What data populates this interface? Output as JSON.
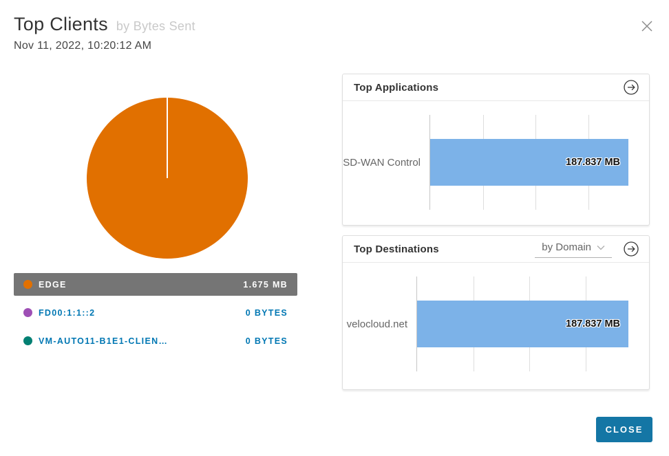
{
  "header": {
    "title": "Top Clients",
    "subtitle": "by Bytes Sent",
    "timestamp": "Nov 11, 2022, 10:20:12 AM"
  },
  "applications_panel": {
    "title": "Top Applications"
  },
  "destinations_panel": {
    "title": "Top Destinations",
    "filter_selected": "by Domain"
  },
  "footer": {
    "close_label": "CLOSE"
  },
  "colors": {
    "pie_orange": "#e17000",
    "series_purple": "#9e4fb5",
    "series_teal": "#038073",
    "bar_blue": "#7cb2e8",
    "legend_selected_bg": "#757575",
    "link_blue": "#0077b3",
    "close_button_bg": "#1476a5"
  },
  "chart_data": [
    {
      "type": "pie",
      "title": "Top Clients by Bytes Sent",
      "legend_position": "bottom",
      "slices": [
        {
          "label": "EDGE",
          "value_mb": 1.675,
          "display_value": "1.675 MB",
          "color": "#e17000",
          "percent": 100,
          "selected": true
        },
        {
          "label": "FD00:1:1::2",
          "value_mb": 0,
          "display_value": "0 BYTES",
          "color": "#9e4fb5",
          "percent": 0,
          "selected": false
        },
        {
          "label": "VM-AUTO11-B1E1-CLIEN…",
          "value_mb": 0,
          "display_value": "0 BYTES",
          "color": "#038073",
          "percent": 0,
          "selected": false
        }
      ]
    },
    {
      "type": "bar",
      "orientation": "horizontal",
      "title": "Top Applications",
      "categories": [
        "SD-WAN Control"
      ],
      "values": [
        187.837
      ],
      "unit": "MB",
      "value_labels": [
        "187.837 MB"
      ],
      "xlim": [
        0,
        187.837
      ],
      "gridline_interval": 50,
      "grid": true,
      "bar_color": "#7cb2e8"
    },
    {
      "type": "bar",
      "orientation": "horizontal",
      "title": "Top Destinations",
      "filter": "by Domain",
      "categories": [
        "velocloud.net"
      ],
      "values": [
        187.837
      ],
      "unit": "MB",
      "value_labels": [
        "187.837 MB"
      ],
      "xlim": [
        0,
        187.837
      ],
      "gridline_interval": 50,
      "grid": true,
      "bar_color": "#7cb2e8"
    }
  ]
}
